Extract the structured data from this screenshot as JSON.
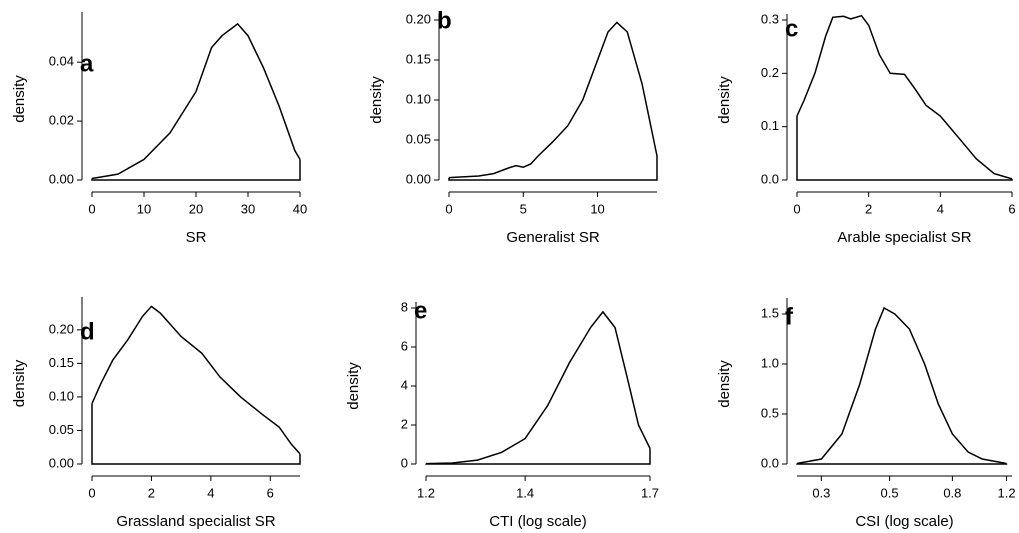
{
  "chart_data": [
    {
      "type": "line",
      "label": "a",
      "xlabel": "SR",
      "ylabel": "density",
      "color": "#000000",
      "x": [
        0,
        5,
        10,
        15,
        20,
        23,
        25,
        28,
        30,
        33,
        36,
        39,
        40
      ],
      "values": [
        0.0005,
        0.002,
        0.007,
        0.016,
        0.03,
        0.045,
        0.049,
        0.053,
        0.049,
        0.038,
        0.025,
        0.01,
        0.007
      ],
      "xlim": [
        0,
        40
      ],
      "ylim": [
        0,
        0.055
      ],
      "xticks": [
        0,
        10,
        20,
        30,
        40
      ],
      "yticks": [
        {
          "value": 0,
          "label": "0.00"
        },
        {
          "value": 0.02,
          "label": "0.02"
        },
        {
          "value": 0.04,
          "label": "0.04"
        }
      ]
    },
    {
      "type": "line",
      "label": "b",
      "xlabel": "Generalist SR",
      "ylabel": "density",
      "color": "#000000",
      "x": [
        0,
        2,
        3,
        4,
        4.5,
        5,
        5.5,
        6,
        7,
        8,
        9,
        10,
        10.7,
        11.3,
        12,
        13,
        14
      ],
      "values": [
        0.003,
        0.005,
        0.008,
        0.015,
        0.018,
        0.016,
        0.02,
        0.03,
        0.048,
        0.068,
        0.1,
        0.15,
        0.185,
        0.197,
        0.185,
        0.12,
        0.03
      ],
      "xlim": [
        0,
        14
      ],
      "ylim": [
        0,
        0.2
      ],
      "xticks": [
        0,
        5,
        10
      ],
      "yticks": [
        {
          "value": 0,
          "label": "0.00"
        },
        {
          "value": 0.05,
          "label": "0.05"
        },
        {
          "value": 0.1,
          "label": "0.10"
        },
        {
          "value": 0.15,
          "label": "0.15"
        },
        {
          "value": 0.2,
          "label": "0.20"
        }
      ]
    },
    {
      "type": "line",
      "label": "c",
      "xlabel": "Arable specialist SR",
      "ylabel": "density",
      "color": "#000000",
      "x": [
        0,
        0.2,
        0.5,
        0.8,
        1,
        1.3,
        1.5,
        1.8,
        2,
        2.3,
        2.6,
        3,
        3.3,
        3.6,
        4,
        4.5,
        5,
        5.5,
        6
      ],
      "values": [
        0.12,
        0.15,
        0.2,
        0.27,
        0.305,
        0.307,
        0.302,
        0.308,
        0.29,
        0.235,
        0.2,
        0.198,
        0.17,
        0.14,
        0.12,
        0.08,
        0.04,
        0.012,
        0.002
      ],
      "xlim": [
        0,
        6
      ],
      "ylim": [
        0,
        0.3
      ],
      "xticks": [
        0,
        2,
        4,
        6
      ],
      "yticks": [
        {
          "value": 0,
          "label": "0.0"
        },
        {
          "value": 0.1,
          "label": "0.1"
        },
        {
          "value": 0.2,
          "label": "0.2"
        },
        {
          "value": 0.3,
          "label": "0.3"
        }
      ]
    },
    {
      "type": "line",
      "label": "d",
      "xlabel": "Grassland specialist SR",
      "ylabel": "density",
      "color": "#000000",
      "x": [
        0,
        0.3,
        0.7,
        1.2,
        1.7,
        2,
        2.3,
        3,
        3.7,
        4.3,
        5,
        5.7,
        6.3,
        6.7,
        7
      ],
      "values": [
        0.09,
        0.12,
        0.155,
        0.185,
        0.22,
        0.235,
        0.225,
        0.19,
        0.165,
        0.13,
        0.1,
        0.075,
        0.055,
        0.03,
        0.015
      ],
      "xlim": [
        0,
        7
      ],
      "ylim": [
        0,
        0.24
      ],
      "xticks": [
        0,
        2,
        4,
        6
      ],
      "yticks": [
        {
          "value": 0,
          "label": "0.00"
        },
        {
          "value": 0.05,
          "label": "0.05"
        },
        {
          "value": 0.1,
          "label": "0.10"
        },
        {
          "value": 0.15,
          "label": "0.15"
        },
        {
          "value": 0.2,
          "label": "0.20"
        }
      ]
    },
    {
      "type": "line",
      "label": "e",
      "xlabel": "CTI (log scale)",
      "ylabel": "density",
      "color": "#000000",
      "xscale": "log",
      "x": [
        1.2,
        1.25,
        1.3,
        1.35,
        1.4,
        1.45,
        1.5,
        1.55,
        1.58,
        1.61,
        1.64,
        1.67,
        1.7
      ],
      "values": [
        0.02,
        0.05,
        0.2,
        0.6,
        1.3,
        3.0,
        5.2,
        7.0,
        7.8,
        7.0,
        4.5,
        2.0,
        0.8
      ],
      "xlim": [
        1.2,
        1.7
      ],
      "ylim": [
        0,
        8
      ],
      "xticks": [
        1.2,
        1.4,
        1.7
      ],
      "yticks": [
        0,
        2,
        4,
        6,
        8
      ]
    },
    {
      "type": "line",
      "label": "f",
      "xlabel": "CSI (log scale)",
      "ylabel": "density",
      "color": "#000000",
      "xscale": "log",
      "x": [
        0.25,
        0.3,
        0.35,
        0.4,
        0.45,
        0.48,
        0.52,
        0.58,
        0.65,
        0.72,
        0.8,
        0.9,
        1.0,
        1.2
      ],
      "values": [
        0.005,
        0.05,
        0.3,
        0.8,
        1.35,
        1.56,
        1.5,
        1.35,
        1.0,
        0.6,
        0.3,
        0.12,
        0.05,
        0.005
      ],
      "xlim": [
        0.25,
        1.25
      ],
      "ylim": [
        0,
        1.6
      ],
      "xticks": [
        0.3,
        0.5,
        0.8,
        1.2
      ],
      "yticks": [
        {
          "value": 0,
          "label": "0.0"
        },
        {
          "value": 0.5,
          "label": "0.5"
        },
        {
          "value": 1,
          "label": "1.0"
        },
        {
          "value": 1.5,
          "label": "1.5"
        }
      ]
    }
  ]
}
